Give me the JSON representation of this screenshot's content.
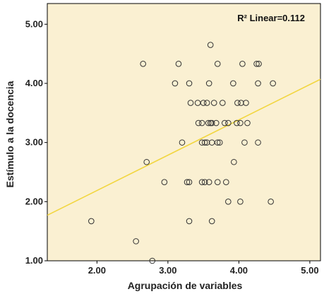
{
  "chart_data": {
    "type": "scatter",
    "xlabel": "Agrupación de variables",
    "ylabel": "Estímulo a la docencia",
    "xlim": [
      1.3,
      5.15
    ],
    "ylim": [
      1.0,
      5.35
    ],
    "x_ticks": [
      "2.00",
      "3.00",
      "4.00",
      "5.00"
    ],
    "y_ticks": [
      "1.00",
      "2.00",
      "3.00",
      "4.00",
      "5.00"
    ],
    "annotation": "R² Linear=0.112",
    "grid": false,
    "plot_background": "#faf0d2",
    "marker_color": "#333333",
    "fit_line_color": "#f2d640",
    "fit_line": {
      "x": [
        1.3,
        5.15
      ],
      "y": [
        1.77,
        4.07
      ]
    },
    "points": [
      {
        "x": 3.6,
        "y": 4.65
      },
      {
        "x": 2.65,
        "y": 4.33
      },
      {
        "x": 3.15,
        "y": 4.33
      },
      {
        "x": 3.7,
        "y": 4.33
      },
      {
        "x": 4.05,
        "y": 4.33
      },
      {
        "x": 4.25,
        "y": 4.33
      },
      {
        "x": 4.28,
        "y": 4.33
      },
      {
        "x": 3.1,
        "y": 4.0
      },
      {
        "x": 3.3,
        "y": 4.0
      },
      {
        "x": 3.58,
        "y": 4.0
      },
      {
        "x": 3.92,
        "y": 4.0
      },
      {
        "x": 4.27,
        "y": 4.0
      },
      {
        "x": 4.48,
        "y": 4.0
      },
      {
        "x": 3.32,
        "y": 3.67
      },
      {
        "x": 3.42,
        "y": 3.67
      },
      {
        "x": 3.5,
        "y": 3.67
      },
      {
        "x": 3.55,
        "y": 3.67
      },
      {
        "x": 3.65,
        "y": 3.67
      },
      {
        "x": 3.77,
        "y": 3.67
      },
      {
        "x": 3.98,
        "y": 3.67
      },
      {
        "x": 4.03,
        "y": 3.67
      },
      {
        "x": 4.1,
        "y": 3.67
      },
      {
        "x": 3.43,
        "y": 3.33
      },
      {
        "x": 3.48,
        "y": 3.33
      },
      {
        "x": 3.57,
        "y": 3.33
      },
      {
        "x": 3.6,
        "y": 3.33
      },
      {
        "x": 3.62,
        "y": 3.33
      },
      {
        "x": 3.68,
        "y": 3.33
      },
      {
        "x": 3.8,
        "y": 3.33
      },
      {
        "x": 3.85,
        "y": 3.33
      },
      {
        "x": 3.97,
        "y": 3.33
      },
      {
        "x": 4.02,
        "y": 3.33
      },
      {
        "x": 4.12,
        "y": 3.33
      },
      {
        "x": 3.2,
        "y": 3.0
      },
      {
        "x": 3.48,
        "y": 3.0
      },
      {
        "x": 3.52,
        "y": 3.0
      },
      {
        "x": 3.55,
        "y": 3.0
      },
      {
        "x": 3.62,
        "y": 3.0
      },
      {
        "x": 3.7,
        "y": 3.0
      },
      {
        "x": 3.73,
        "y": 3.0
      },
      {
        "x": 4.08,
        "y": 3.0
      },
      {
        "x": 4.27,
        "y": 3.0
      },
      {
        "x": 2.7,
        "y": 2.67
      },
      {
        "x": 3.93,
        "y": 2.67
      },
      {
        "x": 2.95,
        "y": 2.33
      },
      {
        "x": 3.27,
        "y": 2.33
      },
      {
        "x": 3.3,
        "y": 2.33
      },
      {
        "x": 3.48,
        "y": 2.33
      },
      {
        "x": 3.52,
        "y": 2.33
      },
      {
        "x": 3.58,
        "y": 2.33
      },
      {
        "x": 3.7,
        "y": 2.33
      },
      {
        "x": 3.82,
        "y": 2.33
      },
      {
        "x": 3.85,
        "y": 2.0
      },
      {
        "x": 4.02,
        "y": 2.0
      },
      {
        "x": 4.45,
        "y": 2.0
      },
      {
        "x": 1.92,
        "y": 1.67
      },
      {
        "x": 3.3,
        "y": 1.67
      },
      {
        "x": 3.62,
        "y": 1.67
      },
      {
        "x": 2.55,
        "y": 1.33
      },
      {
        "x": 2.78,
        "y": 1.0
      }
    ]
  }
}
